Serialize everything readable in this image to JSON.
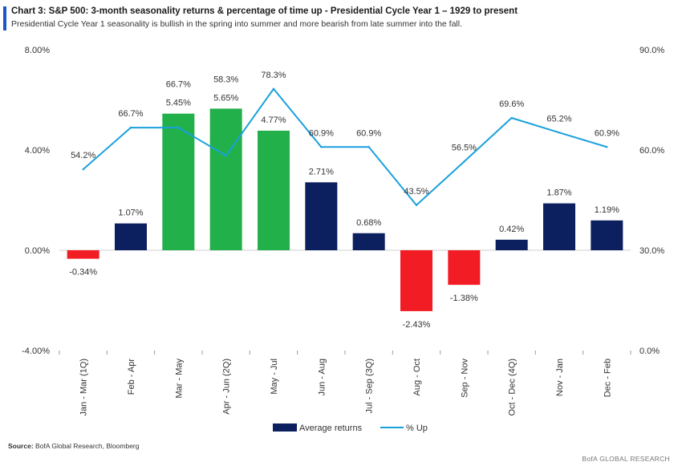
{
  "header": {
    "title": "Chart 3: S&P 500: 3-month seasonality returns & percentage of time up - Presidential Cycle Year 1 – 1929 to present",
    "subtitle": "Presidential Cycle Year 1 seasonality is bullish in the spring into summer and more bearish from late summer into the fall."
  },
  "colors": {
    "navy": "#0c1f5e",
    "green": "#22b04b",
    "red": "#f21c24",
    "line": "#1aa0dc",
    "accent": "#1a56c4"
  },
  "chart_data": {
    "type": "bar+line",
    "categories": [
      "Jan - Mar (1Q)",
      "Feb - Apr",
      "Mar - May",
      "Apr - Jun (2Q)",
      "May - Jul",
      "Jun - Aug",
      "Jul - Sep (3Q)",
      "Aug - Oct",
      "Sep - Nov",
      "Oct - Dec (4Q)",
      "Nov - Jan",
      "Dec - Feb"
    ],
    "series": [
      {
        "name": "Average returns",
        "axis": "left",
        "kind": "bar",
        "values": [
          -0.34,
          1.07,
          5.45,
          5.65,
          4.77,
          2.71,
          0.68,
          -2.43,
          -1.38,
          0.42,
          1.87,
          1.19
        ],
        "labels": [
          "-0.34%",
          "1.07%",
          "5.45%",
          "5.65%",
          "4.77%",
          "2.71%",
          "0.68%",
          "-2.43%",
          "-1.38%",
          "0.42%",
          "1.87%",
          "1.19%"
        ],
        "bar_colors": [
          "red",
          "navy",
          "green",
          "green",
          "green",
          "navy",
          "navy",
          "red",
          "red",
          "navy",
          "navy",
          "navy"
        ]
      },
      {
        "name": "% Up",
        "axis": "right",
        "kind": "line",
        "values": [
          54.2,
          66.7,
          66.7,
          58.3,
          78.3,
          60.9,
          60.9,
          43.5,
          56.5,
          69.6,
          65.2,
          60.9
        ],
        "labels": [
          "54.2%",
          "66.7%",
          "66.7%",
          "58.3%",
          "78.3%",
          "60.9%",
          "60.9%",
          "43.5%",
          "56.5%",
          "69.6%",
          "65.2%",
          "60.9%"
        ]
      }
    ],
    "y_left": {
      "range": [
        -4,
        8
      ],
      "ticks": [
        -4,
        0,
        4,
        8
      ],
      "tick_labels": [
        "-4.00%",
        "0.00%",
        "4.00%",
        "8.00%"
      ]
    },
    "y_right": {
      "range": [
        0,
        90
      ],
      "ticks": [
        0,
        30,
        60,
        90
      ],
      "tick_labels": [
        "0.0%",
        "30.0%",
        "60.0%",
        "90.0%"
      ]
    },
    "legend": {
      "position": "bottom-center",
      "items": [
        "Average returns",
        "% Up"
      ]
    },
    "grid": false
  },
  "footer": {
    "source_label": "Source:",
    "source_text": "BofA Global Research, Bloomberg",
    "brand": "BofA GLOBAL RESEARCH"
  }
}
